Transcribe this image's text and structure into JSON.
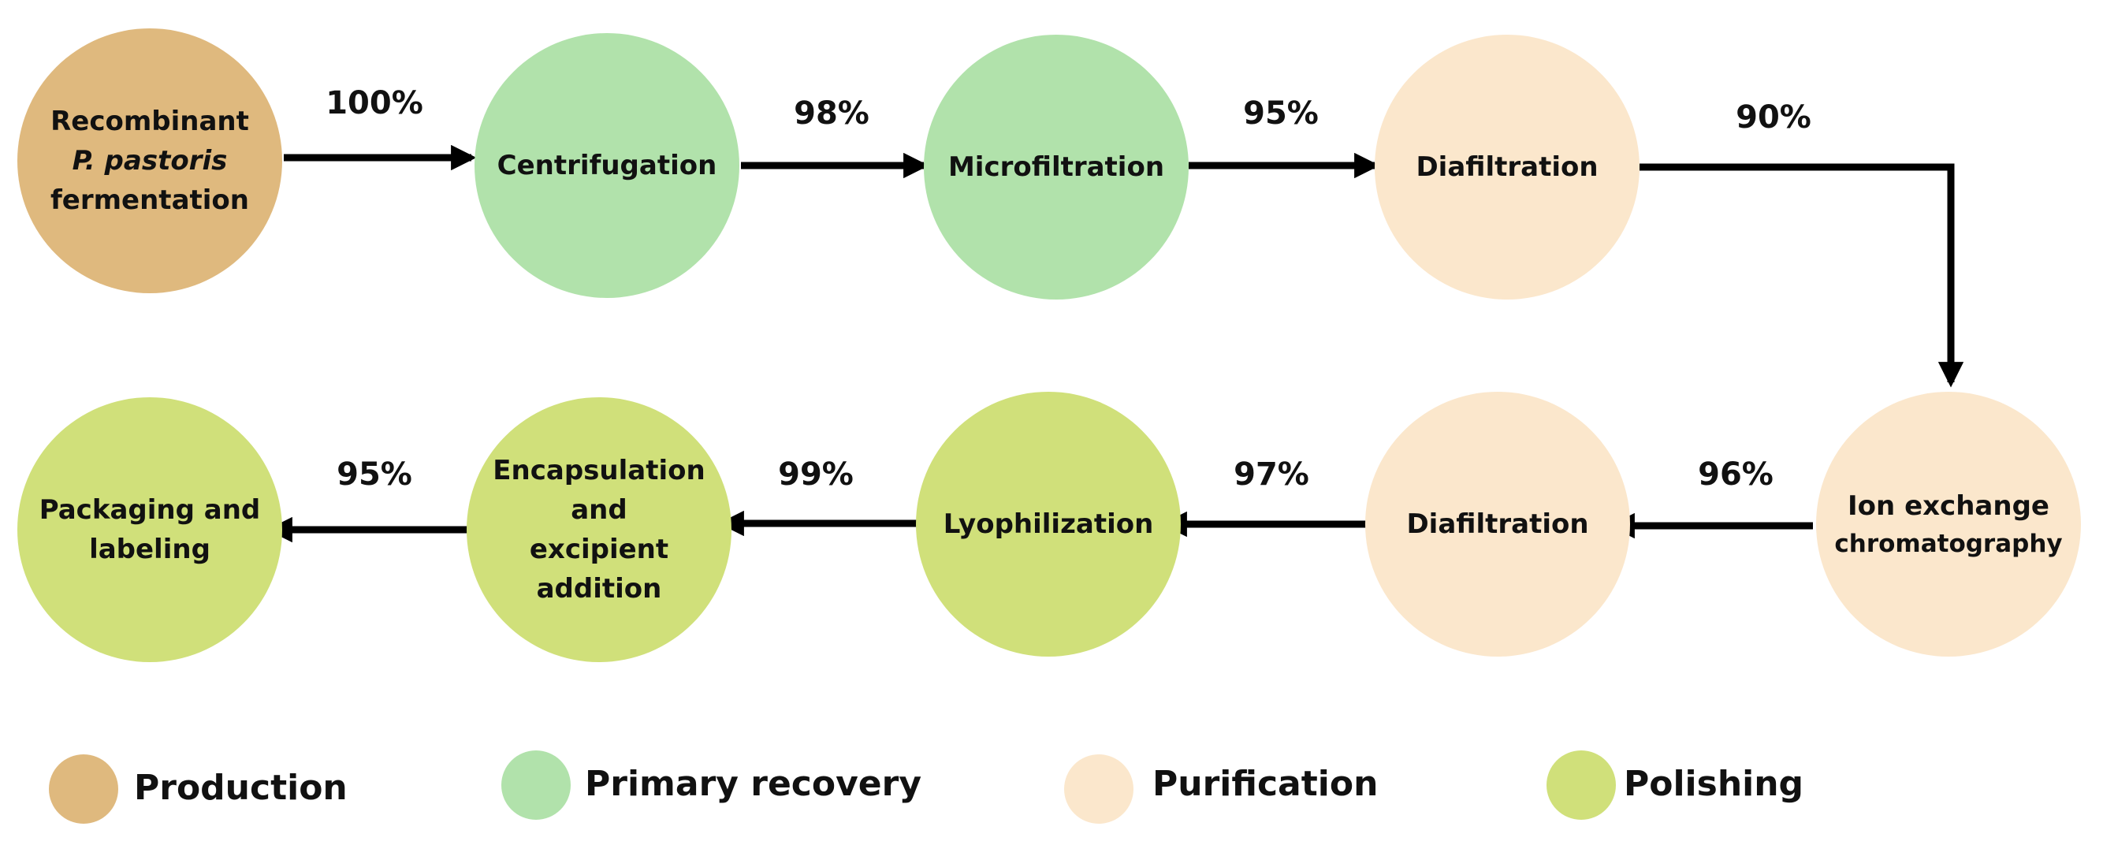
{
  "colors": {
    "production": "#dfb97e",
    "primary_recovery": "#b1e2ab",
    "purification": "#fbe7cc",
    "polishing": "#d0e07a",
    "arrow": "#000000"
  },
  "nodes": [
    {
      "id": "fermentation",
      "category": "production",
      "lines": [
        "Recombinant",
        "P. pastoris",
        "fermentation"
      ]
    },
    {
      "id": "centrifugation",
      "category": "primary_recovery",
      "lines": [
        "Centrifugation"
      ]
    },
    {
      "id": "microfiltration",
      "category": "primary_recovery",
      "lines": [
        "Microfiltration"
      ]
    },
    {
      "id": "diafiltration-1",
      "category": "purification",
      "lines": [
        "Diafiltration"
      ]
    },
    {
      "id": "ion-exchange",
      "category": "purification",
      "lines": [
        "Ion exchange",
        "chromatography"
      ]
    },
    {
      "id": "diafiltration-2",
      "category": "purification",
      "lines": [
        "Diafiltration"
      ]
    },
    {
      "id": "lyophilization",
      "category": "polishing",
      "lines": [
        "Lyophilization"
      ]
    },
    {
      "id": "encapsulation",
      "category": "polishing",
      "lines": [
        "Encapsulation",
        "and",
        "excipient",
        "addition"
      ]
    },
    {
      "id": "packaging",
      "category": "polishing",
      "lines": [
        "Packaging and",
        "labeling"
      ]
    }
  ],
  "yields": [
    "100%",
    "98%",
    "95%",
    "90%",
    "96%",
    "97%",
    "99%",
    "95%"
  ],
  "legend": [
    {
      "category": "production",
      "label": "Production"
    },
    {
      "category": "primary_recovery",
      "label": "Primary recovery"
    },
    {
      "category": "purification",
      "label": "Purification"
    },
    {
      "category": "polishing",
      "label": "Polishing"
    }
  ]
}
